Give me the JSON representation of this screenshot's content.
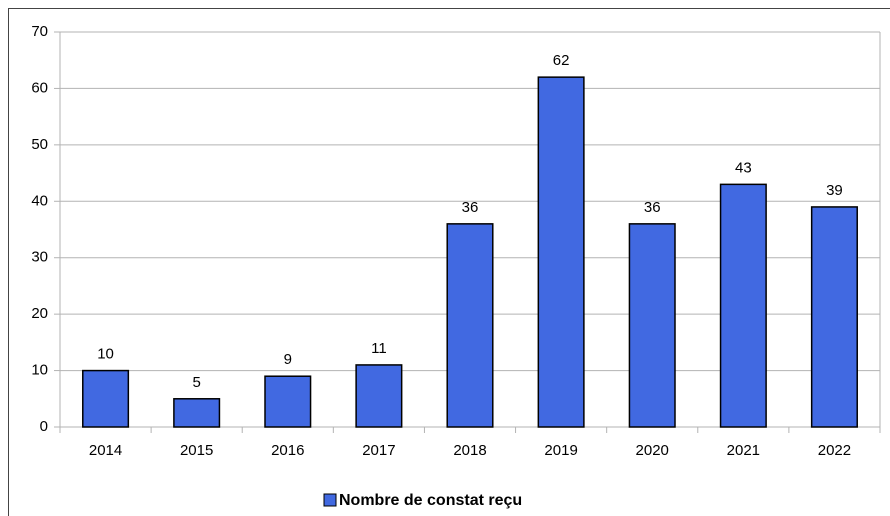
{
  "chart_data": {
    "type": "bar",
    "categories": [
      "2014",
      "2015",
      "2016",
      "2017",
      "2018",
      "2019",
      "2020",
      "2021",
      "2022"
    ],
    "series": [
      {
        "name": "Nombre de constat reçu",
        "color": "#4169e1",
        "values": [
          10,
          5,
          9,
          11,
          36,
          62,
          36,
          43,
          39
        ]
      }
    ],
    "ylim": [
      0,
      70
    ],
    "yticks": [
      0,
      10,
      20,
      30,
      40,
      50,
      60,
      70
    ],
    "grid": true,
    "legend": "bottom"
  }
}
